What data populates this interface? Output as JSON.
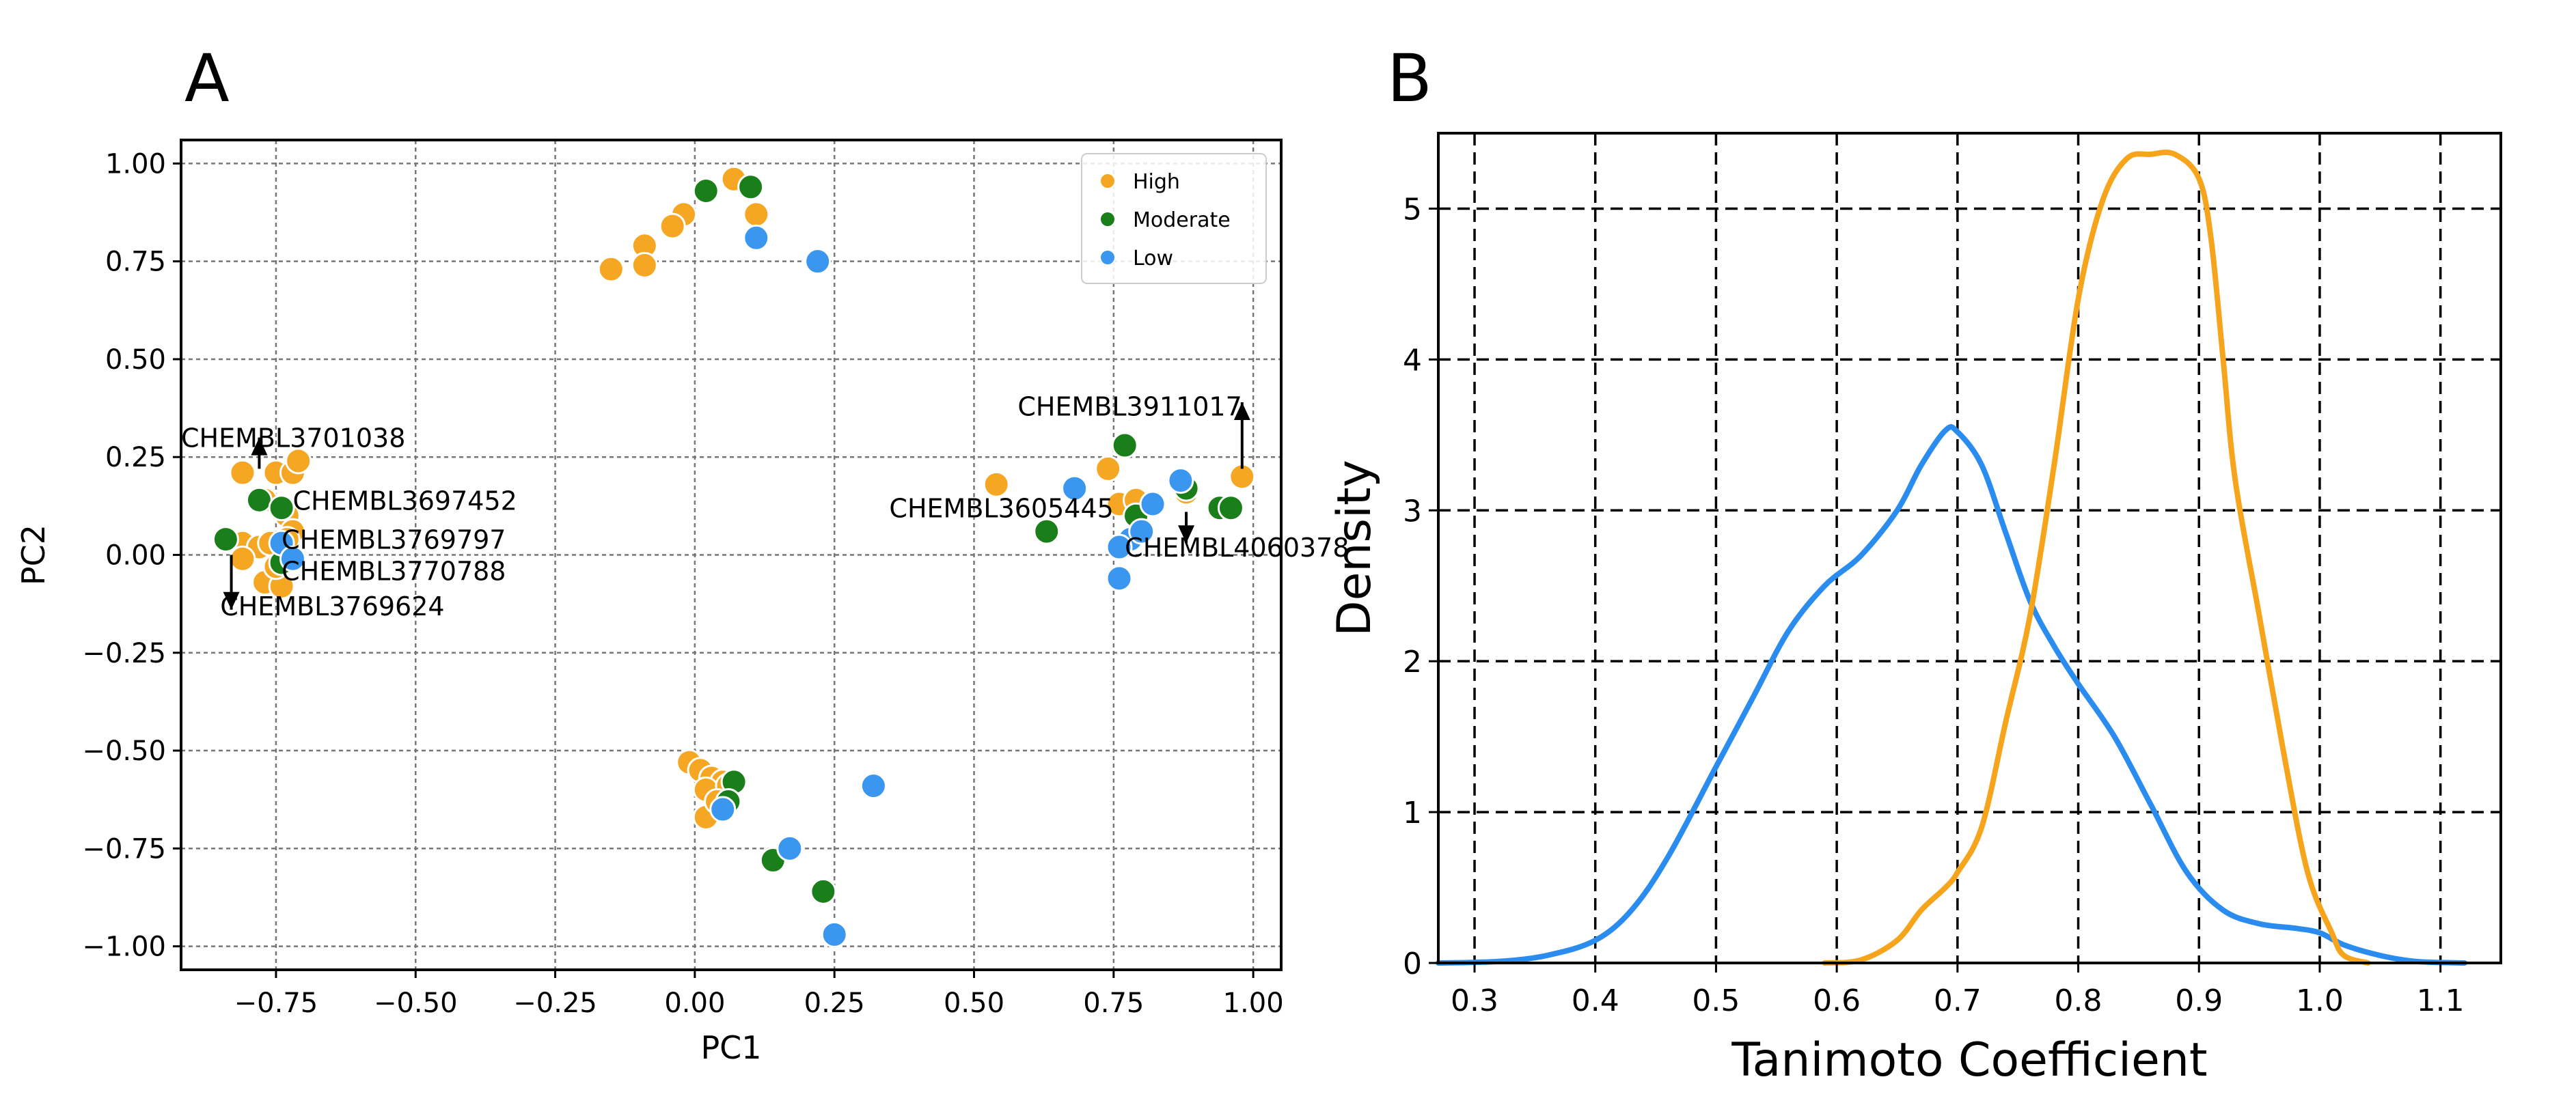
{
  "chart_data": [
    {
      "panel": "A",
      "type": "scatter",
      "title": "",
      "xlabel": "PC1",
      "ylabel": "PC2",
      "xlim": [
        -0.92,
        1.05
      ],
      "ylim": [
        -1.06,
        1.06
      ],
      "xticks": [
        -0.75,
        -0.5,
        -0.25,
        0.0,
        0.25,
        0.5,
        0.75,
        1.0
      ],
      "xtick_labels": [
        "−0.75",
        "−0.50",
        "−0.25",
        "0.00",
        "0.25",
        "0.50",
        "0.75",
        "1.00"
      ],
      "yticks": [
        1.0,
        0.75,
        0.5,
        0.25,
        0.0,
        -0.25,
        -0.5,
        -0.75,
        -1.0
      ],
      "ytick_labels": [
        "1.00",
        "0.75",
        "0.50",
        "0.25",
        "0.00",
        "−0.25",
        "−0.50",
        "−0.75",
        "−1.00"
      ],
      "grid": true,
      "legend_position": "top-right",
      "series": [
        {
          "name": "High",
          "color": "#f5a623",
          "points": [
            [
              0.07,
              0.96
            ],
            [
              0.11,
              0.87
            ],
            [
              -0.02,
              0.87
            ],
            [
              -0.04,
              0.84
            ],
            [
              -0.09,
              0.79
            ],
            [
              -0.09,
              0.74
            ],
            [
              -0.15,
              0.73
            ],
            [
              -0.81,
              0.21
            ],
            [
              -0.75,
              0.21
            ],
            [
              -0.72,
              0.21
            ],
            [
              -0.71,
              0.24
            ],
            [
              -0.77,
              0.14
            ],
            [
              -0.73,
              0.1
            ],
            [
              -0.72,
              0.06
            ],
            [
              -0.84,
              0.04
            ],
            [
              -0.81,
              0.03
            ],
            [
              -0.78,
              0.02
            ],
            [
              -0.76,
              0.03
            ],
            [
              -0.73,
              0.04
            ],
            [
              -0.81,
              -0.01
            ],
            [
              -0.77,
              -0.07
            ],
            [
              -0.74,
              -0.08
            ],
            [
              -0.75,
              -0.03
            ],
            [
              0.54,
              0.18
            ],
            [
              0.74,
              0.22
            ],
            [
              0.76,
              0.13
            ],
            [
              0.79,
              0.14
            ],
            [
              0.88,
              0.16
            ],
            [
              0.98,
              0.2
            ],
            [
              -0.01,
              -0.53
            ],
            [
              0.01,
              -0.55
            ],
            [
              0.03,
              -0.57
            ],
            [
              0.05,
              -0.58
            ],
            [
              0.02,
              -0.6
            ],
            [
              0.06,
              -0.59
            ],
            [
              0.02,
              -0.67
            ],
            [
              0.04,
              -0.63
            ]
          ]
        },
        {
          "name": "Moderate",
          "color": "#1a7f1a",
          "points": [
            [
              0.02,
              0.93
            ],
            [
              0.1,
              0.94
            ],
            [
              -0.78,
              0.14
            ],
            [
              -0.74,
              0.12
            ],
            [
              -0.84,
              0.04
            ],
            [
              -0.74,
              -0.02
            ],
            [
              0.77,
              0.28
            ],
            [
              0.63,
              0.06
            ],
            [
              0.88,
              0.17
            ],
            [
              0.94,
              0.12
            ],
            [
              0.96,
              0.12
            ],
            [
              0.79,
              0.1
            ],
            [
              0.07,
              -0.58
            ],
            [
              0.06,
              -0.63
            ],
            [
              0.14,
              -0.78
            ],
            [
              0.23,
              -0.86
            ]
          ]
        },
        {
          "name": "Low",
          "color": "#3a96ee",
          "points": [
            [
              0.11,
              0.81
            ],
            [
              0.22,
              0.75
            ],
            [
              -0.74,
              0.03
            ],
            [
              -0.72,
              -0.01
            ],
            [
              0.68,
              0.17
            ],
            [
              0.82,
              0.13
            ],
            [
              0.87,
              0.19
            ],
            [
              0.78,
              0.04
            ],
            [
              0.76,
              0.02
            ],
            [
              0.8,
              0.06
            ],
            [
              0.76,
              -0.06
            ],
            [
              0.05,
              -0.65
            ],
            [
              0.17,
              -0.75
            ],
            [
              0.32,
              -0.59
            ],
            [
              0.25,
              -0.97
            ]
          ]
        }
      ],
      "annotations": [
        {
          "label": "CHEMBL3701038",
          "point": [
            -0.78,
            0.23
          ],
          "text_at": [
            -0.92,
            0.3
          ],
          "align": "start",
          "arrow_from": [
            -0.78,
            0.22
          ],
          "arrow_to": [
            -0.78,
            0.3
          ]
        },
        {
          "label": "CHEMBL3697452",
          "point": [
            -0.73,
            0.14
          ],
          "text_at": [
            -0.72,
            0.14
          ],
          "align": "start"
        },
        {
          "label": "CHEMBL3769797",
          "point": [
            -0.73,
            0.05
          ],
          "text_at": [
            -0.74,
            0.04
          ],
          "align": "start"
        },
        {
          "label": "CHEMBL3770788",
          "point": [
            -0.74,
            -0.04
          ],
          "text_at": [
            -0.74,
            -0.04
          ],
          "align": "start"
        },
        {
          "label": "CHEMBL3769624",
          "point": [
            -0.83,
            -0.02
          ],
          "text_at": [
            -0.85,
            -0.13
          ],
          "align": "start",
          "arrow_from": [
            -0.83,
            0.0
          ],
          "arrow_to": [
            -0.83,
            -0.14
          ]
        },
        {
          "label": "CHEMBL3911017",
          "point": [
            0.98,
            0.2
          ],
          "text_at": [
            0.98,
            0.38
          ],
          "align": "end",
          "arrow_from": [
            0.98,
            0.22
          ],
          "arrow_to": [
            0.98,
            0.39
          ]
        },
        {
          "label": "CHEMBL3605445",
          "point": [
            0.76,
            0.13
          ],
          "text_at": [
            0.75,
            0.12
          ],
          "align": "end"
        },
        {
          "label": "CHEMBL4060378",
          "point": [
            0.88,
            0.08
          ],
          "text_at": [
            0.77,
            0.02
          ],
          "align": "start",
          "arrow_from": [
            0.88,
            0.11
          ],
          "arrow_to": [
            0.88,
            0.03
          ]
        }
      ]
    },
    {
      "panel": "B",
      "type": "line",
      "title": "",
      "xlabel": "Tanimoto Coefficient",
      "ylabel": "Density",
      "xlim": [
        0.27,
        1.15
      ],
      "ylim": [
        0,
        5.5
      ],
      "xticks": [
        0.3,
        0.4,
        0.5,
        0.6,
        0.7,
        0.8,
        0.9,
        1.0,
        1.1
      ],
      "xtick_labels": [
        "0.3",
        "0.4",
        "0.5",
        "0.6",
        "0.7",
        "0.8",
        "0.9",
        "1.0",
        "1.1"
      ],
      "yticks": [
        0,
        1,
        2,
        3,
        4,
        5
      ],
      "ytick_labels": [
        "0",
        "1",
        "2",
        "3",
        "4",
        "5"
      ],
      "grid": true,
      "series": [
        {
          "name": "blue",
          "color": "#2b8cf0",
          "points": [
            [
              0.27,
              0.0
            ],
            [
              0.32,
              0.01
            ],
            [
              0.36,
              0.05
            ],
            [
              0.4,
              0.15
            ],
            [
              0.43,
              0.35
            ],
            [
              0.46,
              0.7
            ],
            [
              0.5,
              1.3
            ],
            [
              0.53,
              1.75
            ],
            [
              0.56,
              2.2
            ],
            [
              0.59,
              2.5
            ],
            [
              0.62,
              2.7
            ],
            [
              0.65,
              3.0
            ],
            [
              0.67,
              3.3
            ],
            [
              0.69,
              3.53
            ],
            [
              0.7,
              3.52
            ],
            [
              0.72,
              3.3
            ],
            [
              0.74,
              2.85
            ],
            [
              0.76,
              2.4
            ],
            [
              0.78,
              2.1
            ],
            [
              0.8,
              1.85
            ],
            [
              0.83,
              1.5
            ],
            [
              0.86,
              1.05
            ],
            [
              0.89,
              0.6
            ],
            [
              0.92,
              0.35
            ],
            [
              0.95,
              0.26
            ],
            [
              0.98,
              0.23
            ],
            [
              1.0,
              0.2
            ],
            [
              1.02,
              0.12
            ],
            [
              1.05,
              0.05
            ],
            [
              1.08,
              0.01
            ],
            [
              1.12,
              0.0
            ]
          ]
        },
        {
          "name": "orange",
          "color": "#f7a41d",
          "points": [
            [
              0.59,
              0.0
            ],
            [
              0.62,
              0.02
            ],
            [
              0.65,
              0.15
            ],
            [
              0.67,
              0.35
            ],
            [
              0.69,
              0.5
            ],
            [
              0.7,
              0.6
            ],
            [
              0.72,
              0.9
            ],
            [
              0.74,
              1.6
            ],
            [
              0.76,
              2.3
            ],
            [
              0.78,
              3.3
            ],
            [
              0.8,
              4.4
            ],
            [
              0.82,
              5.05
            ],
            [
              0.84,
              5.33
            ],
            [
              0.86,
              5.36
            ],
            [
              0.88,
              5.36
            ],
            [
              0.9,
              5.2
            ],
            [
              0.91,
              4.8
            ],
            [
              0.92,
              4.0
            ],
            [
              0.93,
              3.2
            ],
            [
              0.95,
              2.3
            ],
            [
              0.97,
              1.4
            ],
            [
              0.99,
              0.6
            ],
            [
              1.01,
              0.2
            ],
            [
              1.02,
              0.05
            ],
            [
              1.04,
              0.0
            ]
          ]
        }
      ]
    }
  ],
  "panel_labels": {
    "a": "A",
    "b": "B"
  }
}
